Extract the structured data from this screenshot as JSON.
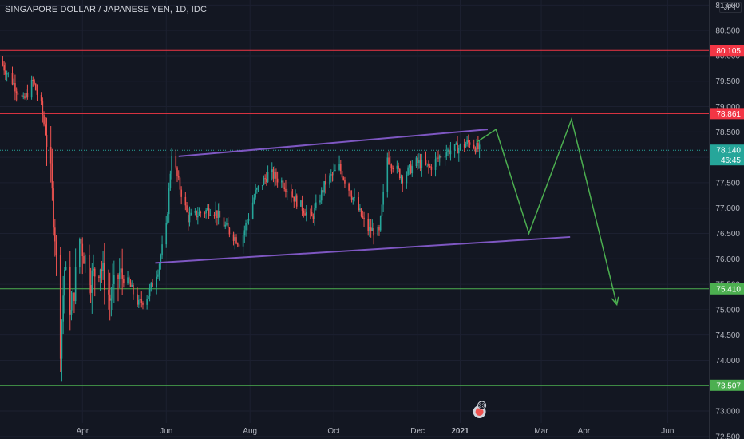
{
  "header": {
    "title": "SINGAPORE DOLLAR / JAPANESE YEN, 1D, IDC"
  },
  "currency_label": "JPY",
  "countdown": "46:45",
  "event_badge_count": "23",
  "colors": {
    "background": "#131722",
    "grid": "#1c2030",
    "up": "#26a69a",
    "down": "#ef5350",
    "resistance": "#f23645",
    "support": "#4caf50",
    "channel": "#7e57c2",
    "projection": "#4caf50",
    "price_line": "#26a69a"
  },
  "chart_data": {
    "type": "candlestick",
    "title": "SINGAPORE DOLLAR / JAPANESE YEN, 1D, IDC",
    "x_ticks": [
      "Apr",
      "Jun",
      "Aug",
      "Oct",
      "Dec",
      "2021",
      "Mar",
      "Apr",
      "Jun"
    ],
    "y_ticks": [
      "81.000",
      "80.500",
      "80.000",
      "79.500",
      "79.000",
      "78.500",
      "78.000",
      "77.500",
      "77.000",
      "76.500",
      "76.000",
      "75.500",
      "75.000",
      "74.500",
      "74.000",
      "73.500",
      "73.000",
      "72.500"
    ],
    "y_range": [
      72.45,
      81.1
    ],
    "x_range": [
      "2020-02-01",
      "2021-07-01"
    ],
    "horizontal_levels": [
      {
        "label": "80.105",
        "value": 80.105,
        "role": "resistance"
      },
      {
        "label": "78.861",
        "value": 78.861,
        "role": "resistance"
      },
      {
        "label": "75.410",
        "value": 75.41,
        "role": "support"
      },
      {
        "label": "73.507",
        "value": 73.507,
        "role": "support"
      }
    ],
    "last_price": {
      "label": "78.140",
      "value": 78.14
    },
    "channel": {
      "upper": [
        [
          "2020-06-10",
          78.02
        ],
        [
          "2021-01-21",
          78.55
        ]
      ],
      "lower": [
        [
          "2020-05-24",
          75.92
        ],
        [
          "2021-03-22",
          76.43
        ]
      ]
    },
    "projection_path": [
      [
        "2021-01-13",
        78.3
      ],
      [
        "2021-01-27",
        78.55
      ],
      [
        "2021-02-20",
        76.5
      ],
      [
        "2021-03-23",
        78.75
      ],
      [
        "2021-04-25",
        75.1
      ]
    ],
    "price_path": [
      [
        "2020-02-01",
        79.9
      ],
      [
        "2020-02-10",
        79.5
      ],
      [
        "2020-02-18",
        79.1
      ],
      [
        "2020-02-25",
        79.5
      ],
      [
        "2020-03-02",
        79.0
      ],
      [
        "2020-03-08",
        78.0
      ],
      [
        "2020-03-12",
        76.5
      ],
      [
        "2020-03-16",
        74.3
      ],
      [
        "2020-03-19",
        75.8
      ],
      [
        "2020-03-24",
        74.9
      ],
      [
        "2020-03-30",
        76.4
      ],
      [
        "2020-04-07",
        75.6
      ],
      [
        "2020-04-14",
        75.9
      ],
      [
        "2020-04-21",
        75.2
      ],
      [
        "2020-04-28",
        75.7
      ],
      [
        "2020-05-05",
        75.5
      ],
      [
        "2020-05-12",
        75.1
      ],
      [
        "2020-05-19",
        75.3
      ],
      [
        "2020-05-26",
        75.8
      ],
      [
        "2020-06-01",
        76.6
      ],
      [
        "2020-06-05",
        78.1
      ],
      [
        "2020-06-10",
        77.5
      ],
      [
        "2020-06-17",
        76.8
      ],
      [
        "2020-06-25",
        76.9
      ],
      [
        "2020-07-05",
        77.0
      ],
      [
        "2020-07-15",
        76.6
      ],
      [
        "2020-07-25",
        76.3
      ],
      [
        "2020-08-05",
        77.3
      ],
      [
        "2020-08-15",
        77.7
      ],
      [
        "2020-08-25",
        77.5
      ],
      [
        "2020-09-05",
        77.1
      ],
      [
        "2020-09-15",
        76.8
      ],
      [
        "2020-09-25",
        77.5
      ],
      [
        "2020-10-05",
        77.8
      ],
      [
        "2020-10-15",
        77.2
      ],
      [
        "2020-10-25",
        76.6
      ],
      [
        "2020-11-03",
        76.5
      ],
      [
        "2020-11-09",
        78.0
      ],
      [
        "2020-11-20",
        77.6
      ],
      [
        "2020-11-30",
        77.9
      ],
      [
        "2020-12-10",
        77.8
      ],
      [
        "2020-12-20",
        78.1
      ],
      [
        "2021-01-01",
        78.2
      ],
      [
        "2021-01-08",
        78.3
      ],
      [
        "2021-01-15",
        78.14
      ]
    ]
  }
}
